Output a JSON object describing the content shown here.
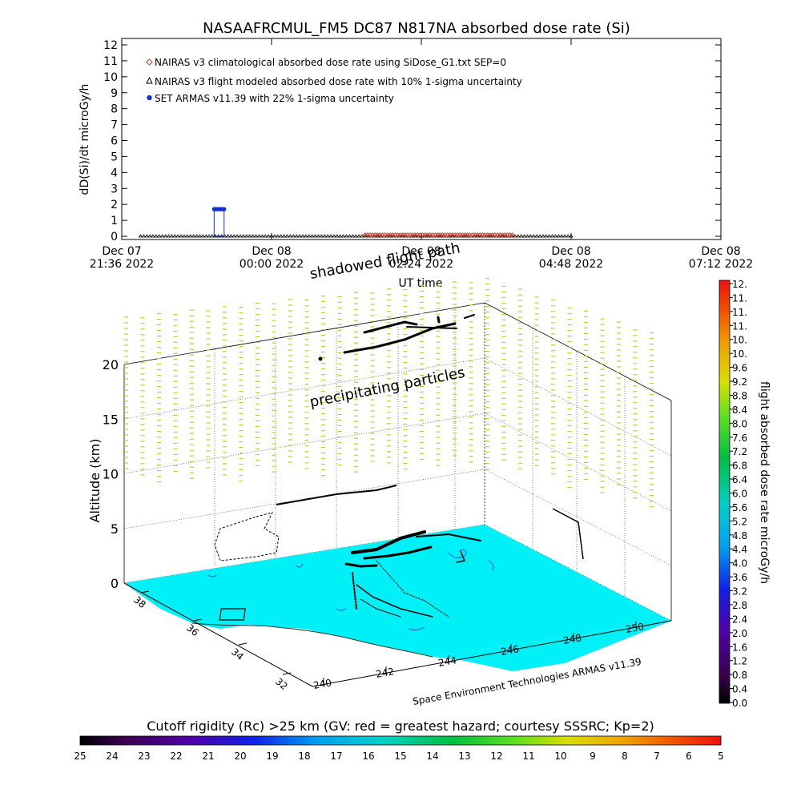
{
  "chart_data": [
    {
      "type": "scatter",
      "title": "NASAAFRCMUL_FM5 DC87 N817NA absorbed dose rate (Si)",
      "ylabel": "dD(Si)/dt microGy/h",
      "xlabel": "UT time",
      "ylim": [
        0,
        12
      ],
      "yticks": [
        "0",
        "1",
        "2",
        "3",
        "4",
        "5",
        "6",
        "7",
        "8",
        "9",
        "10",
        "11",
        "12"
      ],
      "xticks": [
        {
          "line1": "Dec 07",
          "line2": "21:36 2022"
        },
        {
          "line1": "Dec 08",
          "line2": "00:00 2022"
        },
        {
          "line1": "Dec 08",
          "line2": "02:24 2022"
        },
        {
          "line1": "Dec 08",
          "line2": "04:48 2022"
        },
        {
          "line1": "Dec 08",
          "line2": "07:12 2022"
        }
      ],
      "xticks_hours": [
        0,
        2.4,
        4.8,
        7.2,
        9.6
      ],
      "xlim_hours": [
        0,
        9.6
      ],
      "legend": [
        {
          "label": "NAIRAS v3 climatological absorbed dose rate using SiDose_G1.txt SEP=0",
          "color": "#e03020",
          "marker": "diamond"
        },
        {
          "label": "NAIRAS v3 flight modeled absorbed dose rate with 10% 1-sigma uncertainty",
          "color": "#000000",
          "marker": "triangle"
        },
        {
          "label": "SET ARMAS v11.39 with 22% 1-sigma uncertainty",
          "color": "#1030e0",
          "marker": "circle"
        }
      ],
      "series": [
        {
          "name": "NAIRAS v3 flight modeled absorbed dose rate with 10% 1-sigma uncertainty",
          "color": "#000000",
          "x_range_hours": [
            0.3,
            7.2
          ],
          "value": 0.05
        },
        {
          "name": "NAIRAS v3 climatological absorbed dose rate using SiDose_G1.txt SEP=0",
          "color": "#e03020",
          "x_range_hours": [
            3.9,
            6.3
          ],
          "value": 0.1
        },
        {
          "name": "SET ARMAS v11.39 with 22% 1-sigma uncertainty",
          "color": "#1030e0",
          "points_hours": [
            1.48,
            1.5,
            1.52,
            1.54,
            1.56,
            1.58,
            1.6,
            1.62,
            1.64
          ],
          "value": 1.7
        }
      ]
    },
    {
      "type": "scatter",
      "title": "",
      "zlabel": "Altitude (km)",
      "zticks": [
        "0",
        "5",
        "10",
        "15",
        "20"
      ],
      "xticks": [
        "240",
        "242",
        "244",
        "246",
        "248",
        "250"
      ],
      "yticks": [
        "32",
        "34",
        "36",
        "38"
      ],
      "xlabel": "Space Environment Technologies ARMAS v11.39",
      "annotations": [
        "precipitating particles",
        "shadowed flight path"
      ],
      "colorbar": {
        "label": "flight absorbed dose rate microGy/h",
        "ticks": [
          "0.0",
          "0.4",
          "0.8",
          "1.2",
          "1.6",
          "2.0",
          "2.4",
          "2.8",
          "3.2",
          "3.6",
          "4.0",
          "4.4",
          "4.8",
          "5.2",
          "5.6",
          "6.0",
          "6.4",
          "6.8",
          "7.2",
          "7.6",
          "8.0",
          "8.4",
          "8.8",
          "9.2",
          "9.6",
          "10.",
          "10.",
          "11.",
          "11.",
          "11.",
          "12."
        ]
      },
      "rigidity_bar": {
        "label": "Cutoff rigidity (Rc) >25 km (GV: red = greatest hazard; courtesy SSSRC; Kp=2)",
        "ticks": [
          "25",
          "24",
          "23",
          "22",
          "21",
          "20",
          "19",
          "18",
          "17",
          "16",
          "15",
          "14",
          "13",
          "12",
          "11",
          "10",
          "9",
          "8",
          "7",
          "6",
          "5"
        ]
      },
      "surface_color": "#00f0f8",
      "particle_color": "#9ee02a"
    }
  ]
}
